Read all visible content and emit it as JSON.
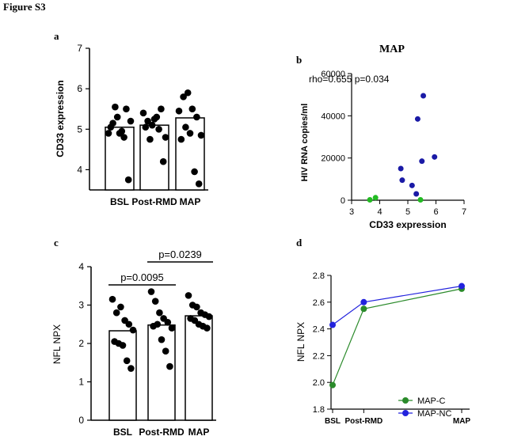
{
  "figure_title": "Figure S3",
  "chart_data": [
    {
      "panel": "a",
      "type": "bar",
      "title": "",
      "xlabel": "",
      "ylabel": "CD33 expression",
      "ylim": [
        3.5,
        7
      ],
      "yticks": [
        "4",
        "5",
        "6",
        "7"
      ],
      "categories": [
        "BSL",
        "Post-RMD",
        "MAP"
      ],
      "values": [
        5.05,
        5.1,
        5.28
      ],
      "points": [
        [
          4.9,
          5.15,
          5.3,
          4.95,
          5.5,
          5.2,
          5.05,
          5.55,
          4.9,
          4.8,
          3.75
        ],
        [
          5.4,
          5.2,
          5.1,
          5.3,
          5.5,
          4.8,
          5.05,
          4.75,
          5.25,
          5.0,
          4.2
        ],
        [
          5.45,
          5.8,
          5.9,
          5.5,
          5.3,
          4.85,
          4.75,
          5.05,
          4.9,
          3.95,
          3.65
        ]
      ]
    },
    {
      "panel": "b",
      "type": "scatter",
      "title": "MAP",
      "xlabel": "CD33 expression",
      "ylabel": "HIV RNA copies/ml",
      "xlim": [
        3,
        7
      ],
      "ylim": [
        0,
        60000
      ],
      "xticks": [
        "3",
        "4",
        "5",
        "6",
        "7"
      ],
      "yticks": [
        "0",
        "20000",
        "40000",
        "60000"
      ],
      "annotation": "rho=0.655 p=0.034",
      "series": [
        {
          "name": "blue",
          "color": "#1a1aa6",
          "x": [
            5.55,
            5.35,
            5.95,
            5.5,
            4.75,
            4.8,
            5.15,
            5.3
          ],
          "y": [
            49500,
            38500,
            20500,
            18500,
            15000,
            9500,
            7000,
            3000
          ]
        },
        {
          "name": "green",
          "color": "#22bb22",
          "x": [
            3.65,
            3.85,
            5.45
          ],
          "y": [
            200,
            1200,
            200
          ]
        }
      ]
    },
    {
      "panel": "c",
      "type": "bar",
      "title": "",
      "xlabel": "",
      "ylabel": "NFL NPX",
      "ylim": [
        0,
        4
      ],
      "yticks": [
        "0",
        "1",
        "2",
        "3",
        "4"
      ],
      "categories": [
        "BSL",
        "Post-RMD",
        "MAP"
      ],
      "values": [
        2.33,
        2.48,
        2.72
      ],
      "points": [
        [
          3.15,
          2.8,
          2.95,
          2.6,
          2.5,
          2.35,
          2.05,
          2.0,
          1.95,
          1.55,
          1.35
        ],
        [
          3.35,
          3.1,
          2.8,
          2.65,
          2.55,
          2.4,
          2.45,
          2.5,
          2.1,
          1.8,
          1.4
        ],
        [
          3.25,
          3.0,
          2.95,
          2.8,
          2.75,
          2.7,
          2.65,
          2.6,
          2.5,
          2.45,
          2.4
        ]
      ],
      "comparisons": [
        {
          "from": "BSL",
          "to": "Post-RMD",
          "label": "p=0.0095"
        },
        {
          "from": "Post-RMD",
          "to": "MAP",
          "label": "p=0.0239"
        }
      ]
    },
    {
      "panel": "d",
      "type": "line",
      "title": "",
      "xlabel": "",
      "ylabel": "NFL NPX",
      "ylim": [
        1.8,
        2.8
      ],
      "yticks": [
        "1.8",
        "2.0",
        "2.2",
        "2.4",
        "2.6",
        "2.8"
      ],
      "categories": [
        "BSL",
        "Post-RMD",
        "MAP"
      ],
      "x": [
        0,
        1.4,
        5.8
      ],
      "legend_position": "bottom-right",
      "series": [
        {
          "name": "MAP-C",
          "color": "#2a8a2a",
          "values": [
            1.98,
            2.55,
            2.7
          ]
        },
        {
          "name": "MAP-NC",
          "color": "#2222dd",
          "values": [
            2.43,
            2.6,
            2.72
          ]
        }
      ]
    }
  ]
}
